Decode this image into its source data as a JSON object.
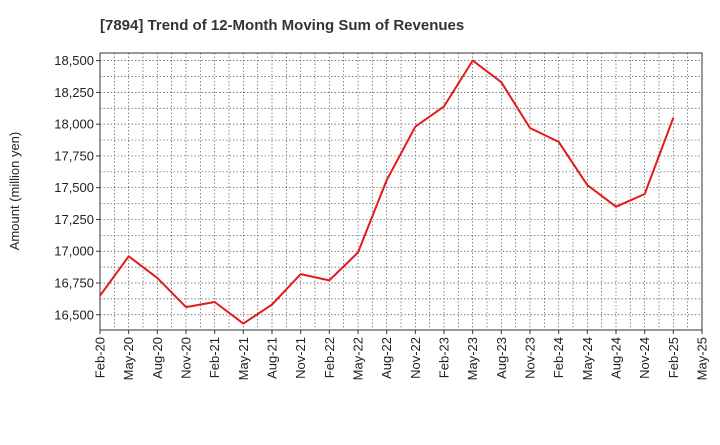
{
  "chart_data": {
    "type": "line",
    "title": "[7894]  Trend of 12-Month Moving Sum of Revenues",
    "xlabel": "",
    "ylabel": "Amount (million yen)",
    "ylim": [
      16380,
      18560
    ],
    "y_ticks": [
      16500,
      16750,
      17000,
      17250,
      17500,
      17750,
      18000,
      18250,
      18500
    ],
    "y_tick_labels": [
      "16,500",
      "16,750",
      "17,000",
      "17,250",
      "17,500",
      "17,750",
      "18,000",
      "18,250",
      "18,500"
    ],
    "x_tick_labels": [
      "Feb-20",
      "May-20",
      "Aug-20",
      "Nov-20",
      "Feb-21",
      "May-21",
      "Aug-21",
      "Nov-21",
      "Feb-22",
      "May-22",
      "Aug-22",
      "Nov-22",
      "Feb-23",
      "May-23",
      "Aug-23",
      "Nov-23",
      "Feb-24",
      "May-24",
      "Aug-24",
      "Nov-24",
      "Feb-25",
      "May-25"
    ],
    "grid": true,
    "series": [
      {
        "color": "#e31a1c",
        "x": [
          "Feb-20",
          "May-20",
          "Aug-20",
          "Nov-20",
          "Feb-21",
          "May-21",
          "Aug-21",
          "Nov-21",
          "Feb-22",
          "May-22",
          "Aug-22",
          "Nov-22",
          "Feb-23",
          "May-23",
          "Aug-23",
          "Nov-23",
          "Feb-24",
          "May-24",
          "Aug-24",
          "Nov-24",
          "Feb-25"
        ],
        "values": [
          16650,
          16960,
          16790,
          16560,
          16600,
          16430,
          16580,
          16820,
          16770,
          16990,
          17560,
          17980,
          18140,
          18500,
          18330,
          17970,
          17860,
          17520,
          17350,
          17450,
          18050
        ]
      }
    ]
  }
}
